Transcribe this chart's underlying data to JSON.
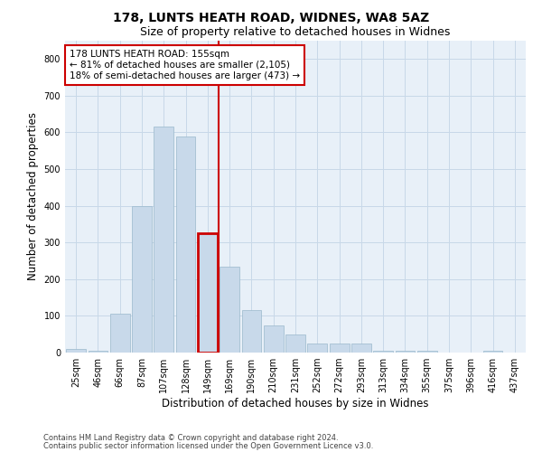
{
  "title1": "178, LUNTS HEATH ROAD, WIDNES, WA8 5AZ",
  "title2": "Size of property relative to detached houses in Widnes",
  "xlabel": "Distribution of detached houses by size in Widnes",
  "ylabel": "Number of detached properties",
  "bar_labels": [
    "25sqm",
    "46sqm",
    "66sqm",
    "87sqm",
    "107sqm",
    "128sqm",
    "149sqm",
    "169sqm",
    "190sqm",
    "210sqm",
    "231sqm",
    "252sqm",
    "272sqm",
    "293sqm",
    "313sqm",
    "334sqm",
    "355sqm",
    "375sqm",
    "396sqm",
    "416sqm",
    "437sqm"
  ],
  "bar_values": [
    10,
    5,
    105,
    400,
    615,
    590,
    325,
    235,
    115,
    75,
    50,
    25,
    25,
    25,
    5,
    5,
    5,
    0,
    0,
    5,
    0
  ],
  "bar_color": "#c8d9ea",
  "bar_edge_color": "#9ab8cc",
  "highlight_index": 6,
  "highlight_edge_color": "#cc0000",
  "vline_color": "#cc0000",
  "annotation_text": "178 LUNTS HEATH ROAD: 155sqm\n← 81% of detached houses are smaller (2,105)\n18% of semi-detached houses are larger (473) →",
  "annotation_box_color": "white",
  "annotation_box_edge_color": "#cc0000",
  "ylim": [
    0,
    850
  ],
  "yticks": [
    0,
    100,
    200,
    300,
    400,
    500,
    600,
    700,
    800
  ],
  "grid_color": "#c8d8e8",
  "background_color": "#e8f0f8",
  "footer1": "Contains HM Land Registry data © Crown copyright and database right 2024.",
  "footer2": "Contains public sector information licensed under the Open Government Licence v3.0.",
  "title_fontsize": 10,
  "subtitle_fontsize": 9,
  "axis_label_fontsize": 8.5,
  "tick_fontsize": 7,
  "annotation_fontsize": 7.5,
  "footer_fontsize": 6
}
